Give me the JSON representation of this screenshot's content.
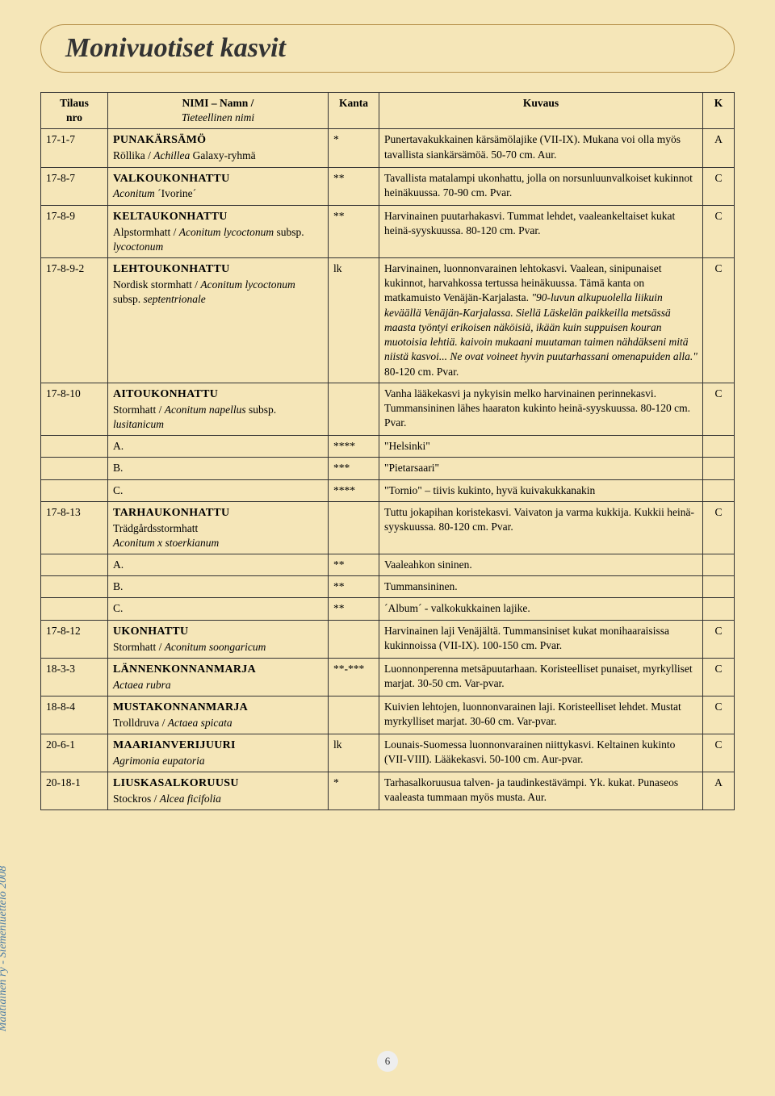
{
  "colors": {
    "background": "#f5e6b8",
    "border_title": "#b8934d",
    "side_text": "#4a7ba6",
    "cell_border": "#333333",
    "page_number_bg": "#eeeeee"
  },
  "typography": {
    "title_fontsize": 34,
    "body_fontsize": 13.5,
    "line_height": 1.35
  },
  "layout": {
    "col_widths": {
      "nro": 70,
      "nimi": 260,
      "kanta": 50,
      "k": 26
    }
  },
  "sideText": "Maatiainen ry - Siemenluettelo 2008",
  "pageTitle": "Monivuotiset kasvit",
  "pageNumber": "6",
  "headers": {
    "nro": "Tilaus\nnro",
    "nimi": "NIMI – Namn /",
    "nimiSub": "Tieteellinen nimi",
    "kanta": "Kanta",
    "kuvaus": "Kuvaus",
    "k": "K"
  },
  "rows": [
    {
      "nro": "17-1-7",
      "name": "PUNAKÄRSÄMÖ",
      "sub": "Röllika / ",
      "sci": "Achillea",
      "after": " Galaxy-ryhmä",
      "kanta": "*",
      "kuvaus": "Punertavakukkainen kärsämölajike (VII-IX). Mukana voi olla myös tavallista siankärsämöä. 50-70 cm. Aur.",
      "k": "A"
    },
    {
      "nro": "17-8-7",
      "name": "VALKOUKONHATTU",
      "sub": "",
      "sci": "Aconitum",
      "after": " ´Ivorine´",
      "kanta": "**",
      "kuvaus": "Tavallista matalampi ukonhattu, jolla on norsunluunvalkoiset kukinnot heinäkuussa. 70-90 cm. Pvar.",
      "k": "C"
    },
    {
      "nro": "17-8-9",
      "name": "KELTAUKONHATTU",
      "sub": "Alpstormhatt / ",
      "sci": "Aconitum lycoctonum",
      "after": " subsp. ",
      "sci2": "lycoctonum",
      "kanta": "**",
      "kuvaus": "Harvinainen puutarhakasvi. Tummat lehdet, vaaleankeltaiset kukat heinä-syyskuussa.  80-120 cm. Pvar.",
      "k": "C"
    },
    {
      "nro": "17-8-9-2",
      "name": "LEHTOUKONHATTU",
      "sub": "Nordisk stormhatt / ",
      "sci": "Aconitum lycoctonum",
      "after": " subsp. ",
      "sci2": "septentrionale",
      "kanta": "lk",
      "kuvaus_pre": "Harvinainen, luonnonvarainen lehtokasvi. Vaalean, sinipunaiset kukinnot, harvahkossa tertussa heinäkuussa. Tämä kanta on matkamuisto Venäjän-Karjalasta. ",
      "kuvaus_italic": "\"90-luvun alkupuolella liikuin keväällä Venäjän-Karjalassa. Siellä Läskelän paikkeilla metsässä maasta työntyi erikoisen näköisiä, ikään kuin suppuisen kouran muotoisia lehtiä. kaivoin mukaani muutaman taimen nähdäkseni mitä niistä kasvoi... Ne ovat voineet hyvin puutarhassani omenapuiden alla.\"",
      "kuvaus_post": " 80-120 cm. Pvar.",
      "k": "C"
    },
    {
      "nro": "17-8-10",
      "name": "AITOUKONHATTU",
      "sub": "Stormhatt / ",
      "sci": "Aconitum napellus",
      "after": " subsp. ",
      "sci2": "lusitanicum",
      "kanta": "",
      "kuvaus": "Vanha lääkekasvi ja nykyisin melko harvinainen perinnekasvi. Tummansininen lähes haaraton kukinto heinä-syyskuussa. 80-120 cm. Pvar.",
      "k": "C"
    },
    {
      "subrow": true,
      "label": "A.",
      "kanta": "****",
      "kuvaus": "\"Helsinki\""
    },
    {
      "subrow": true,
      "label": "B.",
      "kanta": "***",
      "kuvaus": "\"Pietarsaari\""
    },
    {
      "subrow": true,
      "label": "C.",
      "kanta": "****",
      "kuvaus": "\"Tornio\" – tiivis kukinto, hyvä kuivakukkanakin"
    },
    {
      "nro": "17-8-13",
      "name": "TARHAUKONHATTU",
      "sub": "Trädgårdsstormhatt",
      "sci": "Aconitum x stoerkianum",
      "newlineSci": true,
      "kanta": "",
      "kuvaus": "Tuttu jokapihan koristekasvi. Vaivaton ja varma kukkija. Kukkii heinä-syyskuussa.  80-120 cm. Pvar.",
      "k": "C"
    },
    {
      "subrow": true,
      "label": "A.",
      "kanta": "**",
      "kuvaus": "Vaaleahkon sininen."
    },
    {
      "subrow": true,
      "label": "B.",
      "kanta": "**",
      "kuvaus": "Tummansininen."
    },
    {
      "subrow": true,
      "label": "C.",
      "kanta": "**",
      "kuvaus": "´Album´ - valkokukkainen lajike."
    },
    {
      "nro": "17-8-12",
      "name": "UKONHATTU",
      "sub": "Stormhatt / ",
      "sci": "Aconitum soongaricum",
      "kanta": "",
      "kuvaus": "Harvinainen laji Venäjältä. Tummansiniset kukat monihaaraisissa kukinnoissa (VII-IX). 100-150 cm. Pvar.",
      "k": "C"
    },
    {
      "nro": "18-3-3",
      "name": "LÄNNENKONNANMARJA",
      "sub": "",
      "sci": "Actaea rubra",
      "newlineSci": true,
      "kanta": "**-***",
      "kuvaus": "Luonnonperenna metsäpuutarhaan. Koristeelliset punaiset, myrkylliset marjat. 30-50 cm. Var-pvar.",
      "k": "C"
    },
    {
      "nro": "18-8-4",
      "name": "MUSTAKONNANMARJA",
      "sub": "Trolldruva / ",
      "sci": "Actaea spicata",
      "kanta": "",
      "kuvaus": "Kuivien lehtojen, luonnonvarainen laji. Koristeelliset lehdet. Mustat myrkylliset marjat. 30-60 cm. Var-pvar.",
      "k": "C"
    },
    {
      "nro": "20-6-1",
      "name": "MAARIANVERIJUURI",
      "sub": "",
      "sci": "Agrimonia eupatoria",
      "newlineSci": true,
      "kanta": "lk",
      "kuvaus": "Lounais-Suomessa luonnonvarainen niittykasvi. Keltainen kukinto (VII-VIII). Lääkekasvi. 50-100 cm. Aur-pvar.",
      "k": "C"
    },
    {
      "nro": "20-18-1",
      "name": "LIUSKASALKORUUSU",
      "sub": "Stockros / ",
      "sci": "Alcea ficifolia",
      "kanta": "*",
      "kuvaus": "Tarhasalkoruusua talven- ja taudinkestävämpi. Yk. kukat. Punaseos vaaleasta tummaan myös musta. Aur.",
      "k": "A"
    }
  ]
}
